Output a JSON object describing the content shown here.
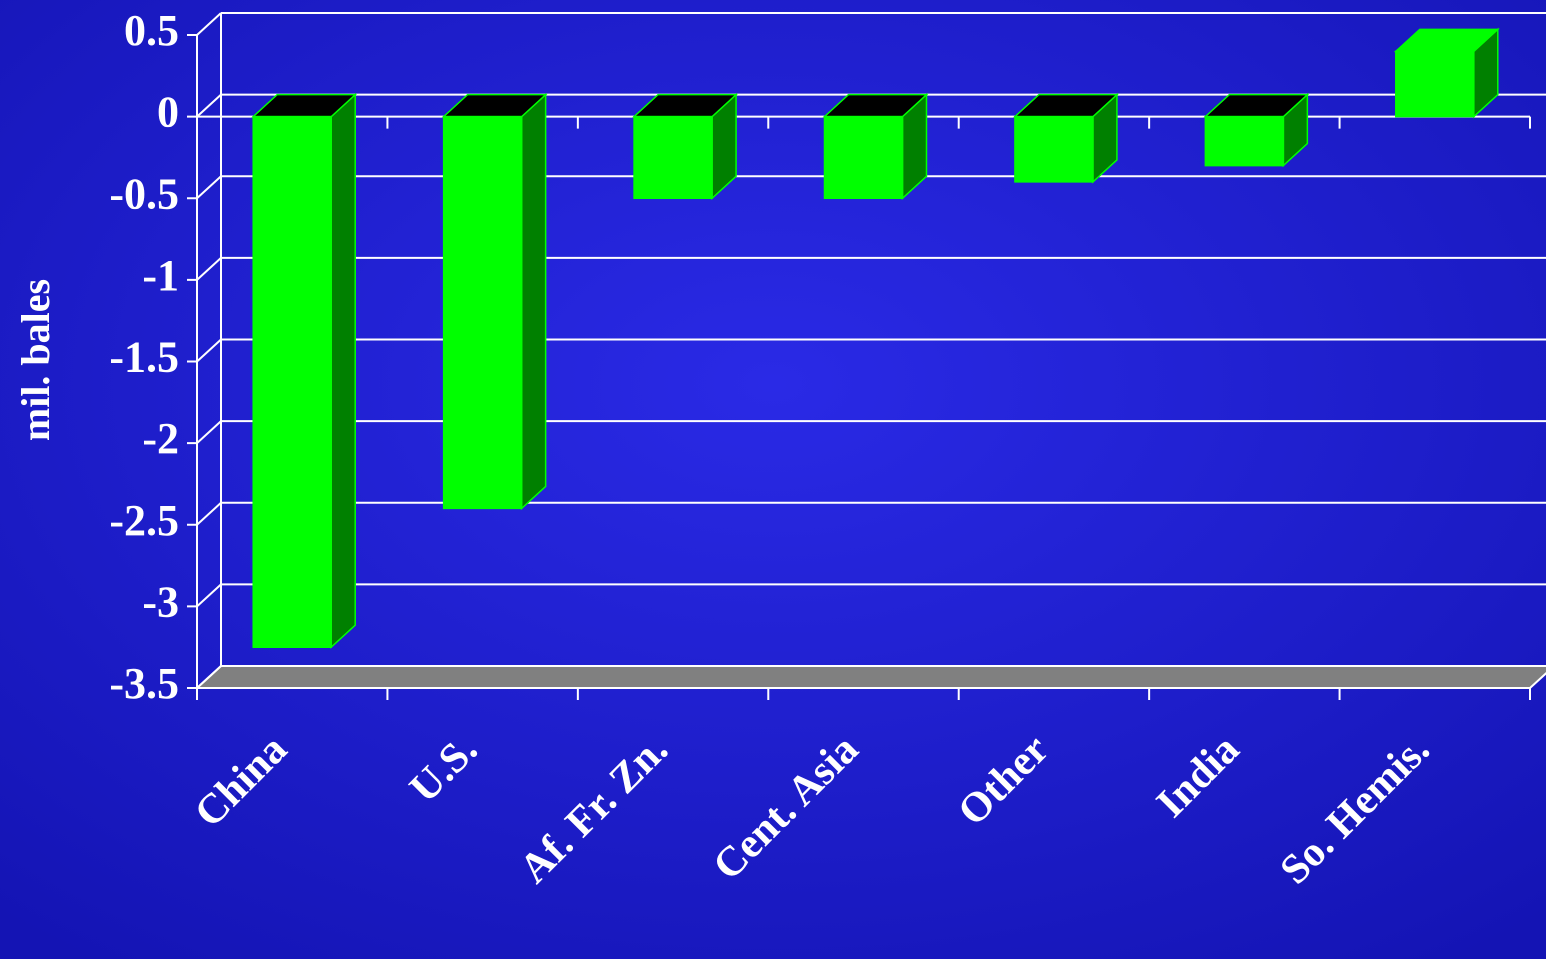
{
  "chart_data": {
    "type": "bar3d",
    "y_label": "mil. bales",
    "categories": [
      "China",
      "U.S.",
      "Af. Fr. Zn.",
      "Cent. Asia",
      "Other",
      "India",
      "So. Hemis."
    ],
    "values": [
      -3.25,
      -2.4,
      -0.5,
      -0.5,
      -0.4,
      -0.3,
      0.4
    ],
    "color": "#00ff00",
    "ylim": [
      -3.5,
      0.5
    ],
    "yticks": [
      0.5,
      0,
      -0.5,
      -1,
      -1.5,
      -2,
      -2.5,
      -3,
      -3.5
    ],
    "grid": true
  }
}
